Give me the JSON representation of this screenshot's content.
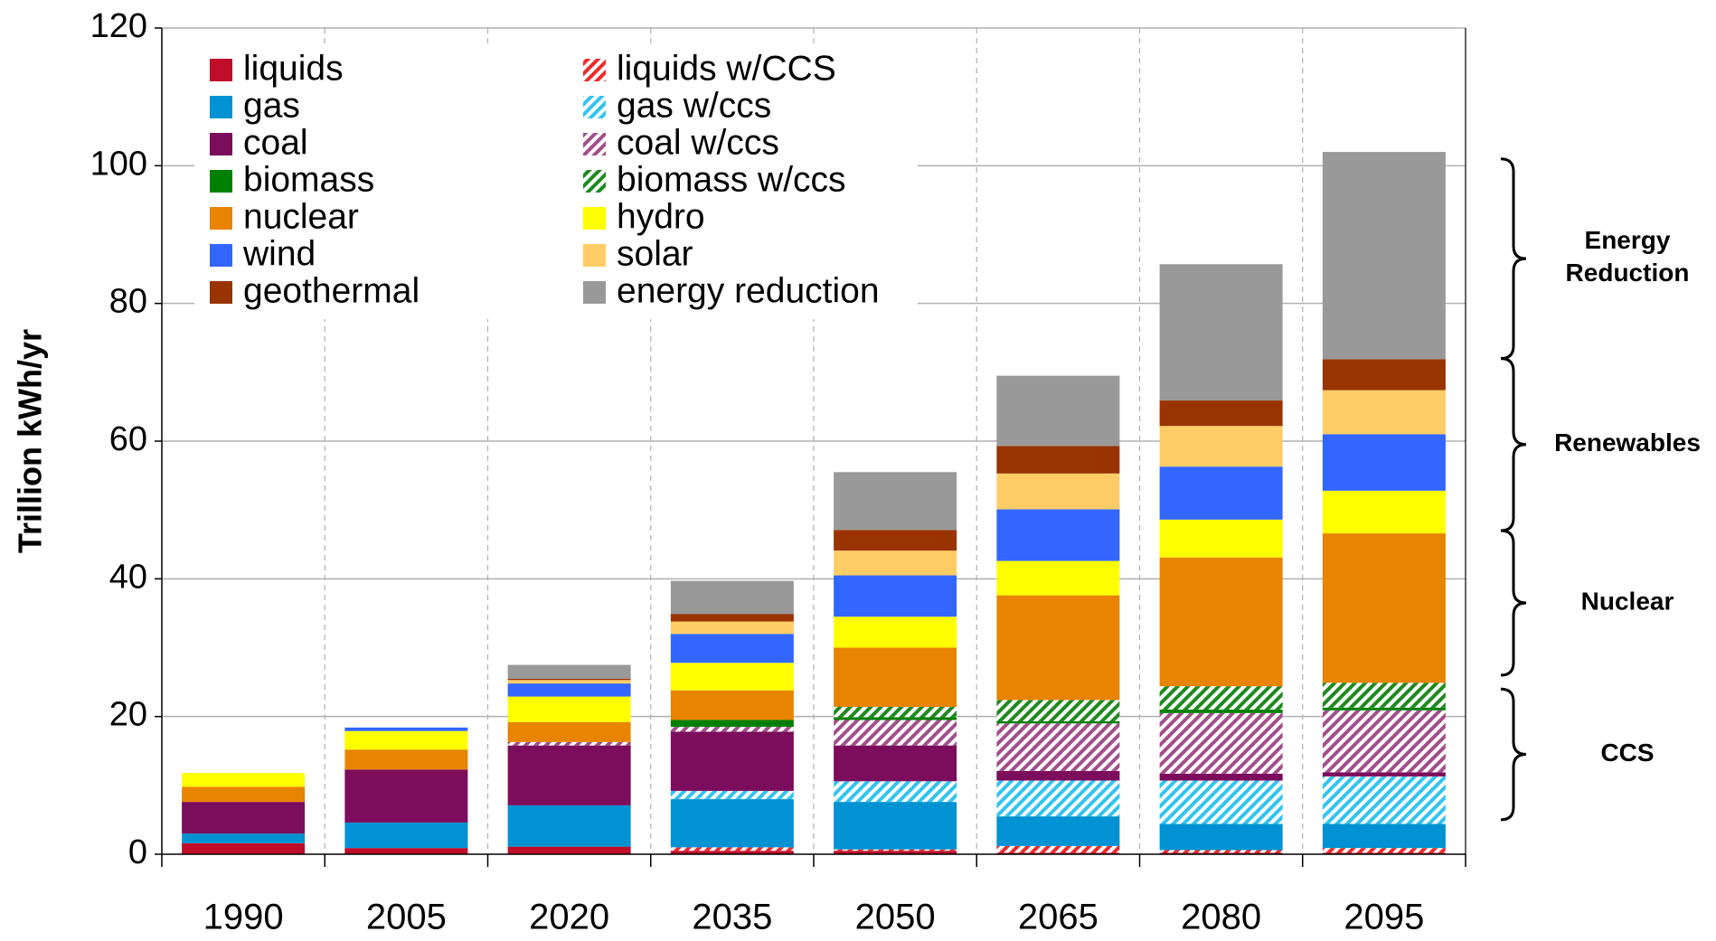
{
  "chart_data": {
    "type": "stacked_bar",
    "y_label": "Trillion kWh/yr",
    "categories": [
      "1990",
      "2005",
      "2020",
      "2035",
      "2050",
      "2065",
      "2080",
      "2095"
    ],
    "ylim": [
      0,
      120
    ],
    "yticks": [
      0,
      20,
      40,
      60,
      80,
      100,
      120
    ],
    "grid": true,
    "series": [
      {
        "name": "liquids",
        "color": "#c00d2a",
        "hatch": false,
        "values": [
          1.6,
          0.9,
          1.1,
          0.5,
          0.5,
          0.2,
          0.2,
          0.2
        ]
      },
      {
        "name": "liquids w/CCS",
        "color": "#ee2a2a",
        "hatch": true,
        "values": [
          0,
          0,
          0,
          0.5,
          0.2,
          1.0,
          0.4,
          0.7
        ]
      },
      {
        "name": "gas",
        "color": "#0092d2",
        "hatch": false,
        "values": [
          1.4,
          3.7,
          6.0,
          7.0,
          6.9,
          4.3,
          3.8,
          3.5
        ]
      },
      {
        "name": "gas w/ccs",
        "color": "#33c4f0",
        "hatch": true,
        "values": [
          0,
          0,
          0,
          1.2,
          3.0,
          5.2,
          6.3,
          6.9
        ]
      },
      {
        "name": "coal",
        "color": "#7c0c5c",
        "hatch": false,
        "values": [
          4.6,
          7.7,
          8.7,
          8.6,
          5.2,
          1.4,
          1.0,
          0.6
        ]
      },
      {
        "name": "coal w/ccs",
        "color": "#a24f8c",
        "hatch": true,
        "values": [
          0,
          0,
          0.5,
          0.7,
          3.7,
          6.9,
          8.8,
          9.0
        ]
      },
      {
        "name": "biomass",
        "color": "#008000",
        "hatch": false,
        "values": [
          0,
          0,
          0,
          1.0,
          0.4,
          0.3,
          0.5,
          0.4
        ]
      },
      {
        "name": "biomass w/ccs",
        "color": "#1f8a1f",
        "hatch": true,
        "values": [
          0,
          0,
          0,
          0,
          1.5,
          3.1,
          3.4,
          3.6
        ]
      },
      {
        "name": "nuclear",
        "color": "#e88400",
        "hatch": false,
        "values": [
          2.2,
          2.9,
          2.9,
          4.3,
          8.6,
          15.2,
          18.7,
          21.7
        ]
      },
      {
        "name": "hydro",
        "color": "#ffff00",
        "hatch": false,
        "values": [
          2.0,
          2.7,
          3.7,
          4.0,
          4.5,
          5.0,
          5.5,
          6.2
        ]
      },
      {
        "name": "wind",
        "color": "#3366ff",
        "hatch": false,
        "values": [
          0,
          0.5,
          1.9,
          4.2,
          6.0,
          7.5,
          7.7,
          8.2
        ]
      },
      {
        "name": "solar",
        "color": "#ffcc66",
        "hatch": false,
        "values": [
          0,
          0,
          0.5,
          1.8,
          3.6,
          5.2,
          5.9,
          6.4
        ]
      },
      {
        "name": "geothermal",
        "color": "#993300",
        "hatch": false,
        "values": [
          0,
          0,
          0.2,
          1.1,
          3.0,
          4.0,
          3.7,
          4.5
        ]
      },
      {
        "name": "energy reduction",
        "color": "#999999",
        "hatch": false,
        "values": [
          0,
          0,
          2.0,
          4.8,
          8.4,
          10.2,
          19.8,
          30.1
        ]
      }
    ],
    "annotations": [
      {
        "text": "Energy Reduction",
        "range": [
          72,
          101
        ]
      },
      {
        "text": "Renewables",
        "range": [
          47,
          72
        ]
      },
      {
        "text": "Nuclear",
        "range": [
          26,
          47
        ]
      },
      {
        "text": "CCS",
        "range": [
          5,
          24
        ]
      }
    ]
  }
}
